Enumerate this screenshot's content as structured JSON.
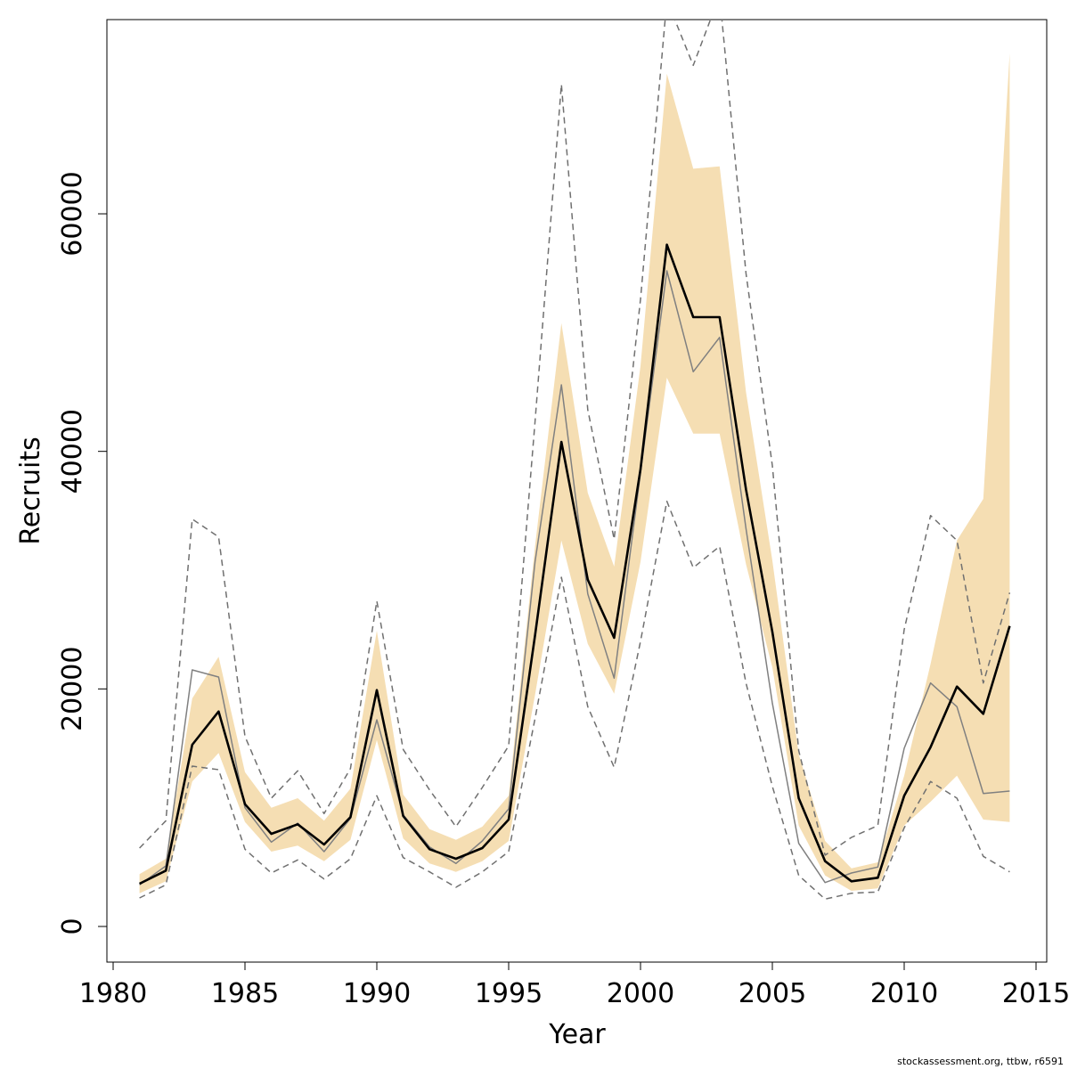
{
  "chart_data": {
    "type": "line",
    "title": "",
    "xlabel": "Year",
    "ylabel": "Recruits",
    "xlim": [
      1980,
      2015
    ],
    "ylim": [
      0,
      75000
    ],
    "xticks": [
      1980,
      1985,
      1990,
      1995,
      2000,
      2005,
      2010,
      2015
    ],
    "yticks": [
      0,
      20000,
      40000,
      60000
    ],
    "grid": false,
    "legend": "none",
    "x": [
      1981,
      1982,
      1983,
      1984,
      1985,
      1986,
      1987,
      1988,
      1989,
      1990,
      1991,
      1992,
      1993,
      1994,
      1995,
      1996,
      1997,
      1998,
      1999,
      2000,
      2001,
      2002,
      2003,
      2004,
      2005,
      2006,
      2007,
      2008,
      2009,
      2010,
      2011,
      2012,
      2013,
      2014
    ],
    "band": {
      "color": "#f5deb3",
      "lower": [
        2800,
        3800,
        12200,
        14600,
        8800,
        6300,
        6800,
        5500,
        7300,
        15700,
        7400,
        5300,
        4600,
        5500,
        7200,
        19500,
        32500,
        23800,
        19600,
        30700,
        46200,
        41500,
        41500,
        30500,
        21800,
        8500,
        4300,
        3000,
        3200,
        8500,
        10500,
        12700,
        9000,
        8800
      ],
      "upper": [
        4400,
        5700,
        19200,
        22700,
        13000,
        10000,
        10800,
        8900,
        11600,
        24900,
        11100,
        8200,
        7300,
        8400,
        11000,
        32000,
        50800,
        36500,
        30300,
        47200,
        71800,
        63800,
        64000,
        45000,
        30800,
        14500,
        7200,
        4900,
        5400,
        12700,
        22100,
        32500,
        36000,
        73500
      ]
    },
    "series": [
      {
        "color": "#000000",
        "values": [
          3600,
          4700,
          15300,
          18100,
          10300,
          7800,
          8600,
          6900,
          9200,
          19900,
          9300,
          6500,
          5700,
          6600,
          9000,
          24500,
          40800,
          29200,
          24300,
          38500,
          57400,
          51300,
          51300,
          36800,
          24800,
          10800,
          5500,
          3800,
          4100,
          11000,
          15100,
          20200,
          17900,
          25300
        ]
      },
      {
        "color": "#808080",
        "values": [
          3500,
          5100,
          21600,
          21000,
          10000,
          7100,
          8700,
          6300,
          9100,
          17400,
          9400,
          6700,
          5300,
          7200,
          9900,
          30700,
          45600,
          28000,
          20900,
          38200,
          55200,
          46700,
          49600,
          33500,
          18800,
          7000,
          3700,
          4500,
          5000,
          15000,
          20500,
          18500,
          11200,
          11400
        ]
      },
      {
        "color": "#707070",
        "dash": true,
        "values": [
          6600,
          8900,
          34300,
          32800,
          16000,
          10800,
          13100,
          9500,
          13300,
          27400,
          14900,
          11500,
          8400,
          11700,
          15200,
          42500,
          70900,
          43500,
          32600,
          52800,
          78000,
          72500,
          78400,
          55000,
          38800,
          14800,
          6000,
          7500,
          8500,
          25000,
          34600,
          32500,
          20500,
          28100
        ]
      },
      {
        "color": "#707070",
        "dash": true,
        "values": [
          2400,
          3500,
          13500,
          13200,
          6500,
          4500,
          5600,
          4000,
          5700,
          11000,
          5800,
          4600,
          3300,
          4600,
          6300,
          17500,
          29400,
          18500,
          13400,
          24000,
          35800,
          30200,
          32000,
          20500,
          11800,
          4300,
          2300,
          2800,
          2900,
          8300,
          12200,
          10800,
          5900,
          4600
        ]
      }
    ]
  },
  "credit": "stockassessment.org, ttbw, r6591"
}
